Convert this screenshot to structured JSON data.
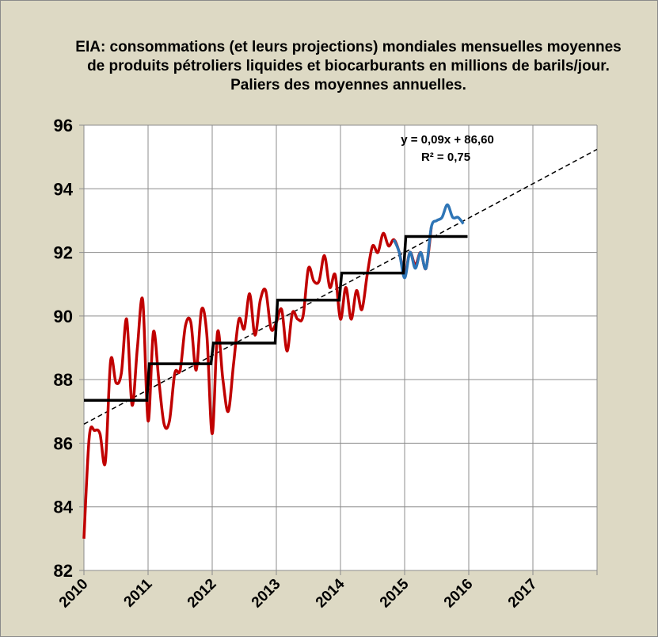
{
  "chart_data": {
    "type": "line",
    "title": "EIA: consommations (et leurs projections) mondiales mensuelles moyennes de produits pétroliers  liquides et biocarburants en millions de barils/jour. Paliers des moyennes annuelles.",
    "xlabel": "",
    "ylabel": "",
    "xlim": [
      2010,
      2018
    ],
    "ylim": [
      82,
      96
    ],
    "x_ticks": [
      "2010",
      "2011",
      "2012",
      "2013",
      "2014",
      "2015",
      "2016",
      "2017"
    ],
    "y_ticks": [
      "82",
      "84",
      "86",
      "88",
      "90",
      "92",
      "94",
      "96"
    ],
    "grid": true,
    "legend": "none",
    "colors": {
      "historical": "#c00000",
      "projection": "#2e75b6",
      "annual_steps": "#000000",
      "trend": "#000000",
      "plot_bg": "#ffffff",
      "outer_bg": "#ddd9c4",
      "grid": "#8c8c8c"
    },
    "series": [
      {
        "start": "2010-01",
        "values": [
          83.0,
          86.2,
          86.4,
          86.3,
          85.4,
          88.6,
          87.9,
          88.2,
          89.9,
          87.2,
          89.0,
          90.5,
          86.7,
          89.5,
          88.0,
          86.6,
          86.7,
          88.2,
          88.3,
          89.7,
          89.8,
          88.3,
          90.2,
          89.4,
          86.3,
          89.5,
          88.0,
          87.0,
          88.5,
          89.9,
          89.6,
          90.7,
          89.4,
          90.5,
          90.8,
          89.6,
          89.8,
          90.2,
          88.9,
          90.1,
          89.9,
          90.0,
          91.5,
          91.1,
          91.1,
          91.9,
          90.9,
          91.3,
          89.9,
          90.9,
          89.9,
          90.8,
          90.2,
          91.3,
          92.2,
          92.0,
          92.6,
          92.2,
          92.4,
          92.0,
          91.3,
          92.0,
          91.6,
          92.0,
          91.5,
          92.8
        ]
      },
      {
        "start": "2014-11",
        "values": [
          92.4,
          92.0,
          91.2,
          92.0,
          91.5,
          92.0,
          91.5,
          92.8,
          93.0,
          93.1,
          93.5,
          93.1,
          93.1,
          92.9
        ]
      }
    ],
    "annual_means": [
      {
        "year": 2010,
        "value": 87.35
      },
      {
        "year": 2011,
        "value": 88.5
      },
      {
        "year": 2012,
        "value": 89.15
      },
      {
        "year": 2013,
        "value": 90.5
      },
      {
        "year": 2014,
        "value": 91.35
      },
      {
        "year": 2015,
        "value": 92.5
      }
    ],
    "trendline": {
      "slope": 0.09,
      "intercept": 86.6,
      "x_unit": "month index",
      "equation": "y = 0,09x + 86,60",
      "r2": "R² = 0,75"
    }
  }
}
